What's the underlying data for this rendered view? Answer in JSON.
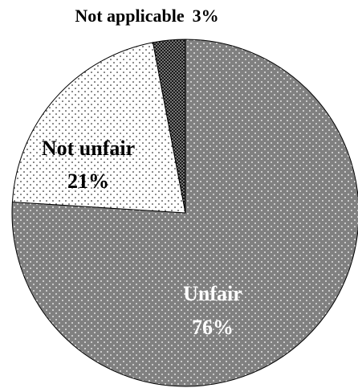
{
  "chart_data": {
    "type": "pie",
    "categories": [
      "Unfair",
      "Not unfair",
      "Not applicable"
    ],
    "values": [
      76,
      21,
      3
    ],
    "value_labels": [
      "76%",
      "21%",
      "3%"
    ],
    "colors": [
      "#808080",
      "#ffffff",
      "#1a1a1a"
    ]
  }
}
